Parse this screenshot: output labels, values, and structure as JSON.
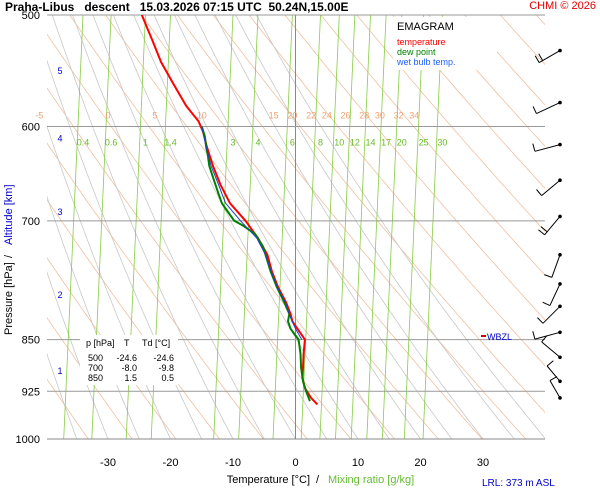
{
  "header": {
    "title": "Praha-Libus   descent   15.03.2026 07:15 UTC  50.24N,15.00E",
    "copyright": "CHMI © 2026"
  },
  "legend": {
    "title": "EMAGRAM",
    "items": [
      {
        "label": "temperature",
        "color": "#ff0000"
      },
      {
        "label": "dew point",
        "color": "#008000"
      },
      {
        "label": "wet bulb temp.",
        "color": "#2060ff"
      }
    ]
  },
  "axes": {
    "y_title_pressure": "Pressure [hPa]",
    "y_title_sep": "/",
    "y_title_altitude": "Altitude [km]",
    "x_title_temp": "Temperature [°C]",
    "x_title_sep": "/",
    "x_title_mixing": "Mixing ratio [g/kg]"
  },
  "station": {
    "marker_label": "WBZL",
    "marker_pressure": 845,
    "lrl": "LRL: 373 m ASL"
  },
  "data_table": {
    "headers": [
      "p [hPa]",
      "T",
      "Td [°C]"
    ],
    "rows": [
      [
        "500",
        "-24.6",
        "-24.6"
      ],
      [
        "700",
        "-8.0",
        "-9.8"
      ],
      [
        "850",
        "1.5",
        "0.5"
      ]
    ]
  },
  "colors": {
    "temperature": "#ff0000",
    "dewpoint": "#008000",
    "wetbulb": "#2040c0",
    "isobar": "#999999",
    "dry_adiabat": "#f0c0a0",
    "moist_adiabat": "#c8c8c8",
    "mixing_ratio": "#88cc44",
    "altitude": "#0000cc"
  },
  "chart_data": {
    "type": "line",
    "x_scale": "linear",
    "y_scale": "log",
    "xlim": [
      -40,
      40
    ],
    "ylim": [
      1000,
      500
    ],
    "pressure_ticks": [
      500,
      600,
      700,
      850,
      925,
      1000
    ],
    "temperature_ticks": [
      -30,
      -20,
      -10,
      0,
      10,
      20,
      30
    ],
    "altitude_ticks": [
      {
        "label": "5",
        "p": 548
      },
      {
        "label": "4",
        "p": 612
      },
      {
        "label": "3",
        "p": 690
      },
      {
        "label": "2",
        "p": 790
      },
      {
        "label": "1",
        "p": 895
      }
    ],
    "dry_adiabat_labels": [
      {
        "label": "-5",
        "p": 595,
        "t": -41
      },
      {
        "label": "0",
        "p": 595,
        "t": -30
      },
      {
        "label": "5",
        "p": 595,
        "t": -22.5
      },
      {
        "label": "10",
        "p": 595,
        "t": -15
      },
      {
        "label": "15",
        "p": 595,
        "t": -3.5
      },
      {
        "label": "20",
        "p": 595,
        "t": -0.5
      },
      {
        "label": "22",
        "p": 595,
        "t": 2.5
      },
      {
        "label": "24",
        "p": 595,
        "t": 5
      },
      {
        "label": "26",
        "p": 595,
        "t": 8
      },
      {
        "label": "28",
        "p": 595,
        "t": 11
      },
      {
        "label": "30",
        "p": 595,
        "t": 13.5
      },
      {
        "label": "32",
        "p": 595,
        "t": 16.5
      },
      {
        "label": "34",
        "p": 595,
        "t": 19
      }
    ],
    "mixing_ratio_labels": [
      {
        "label": "0.4",
        "t": -34
      },
      {
        "label": "0.6",
        "t": -29.5
      },
      {
        "label": "1",
        "t": -24
      },
      {
        "label": "1.4",
        "t": -20
      },
      {
        "label": "3",
        "t": -10
      },
      {
        "label": "4",
        "t": -6
      },
      {
        "label": "6",
        "t": -0.5
      },
      {
        "label": "8",
        "t": 4
      },
      {
        "label": "10",
        "t": 7
      },
      {
        "label": "12",
        "t": 9.5
      },
      {
        "label": "14",
        "t": 12
      },
      {
        "label": "17",
        "t": 14.5
      },
      {
        "label": "20",
        "t": 17
      },
      {
        "label": "25",
        "t": 20.5
      },
      {
        "label": "30",
        "t": 23.5
      }
    ],
    "series": [
      {
        "key": "temperature",
        "values": [
          {
            "p": 500,
            "t": -24.6
          },
          {
            "p": 520,
            "t": -23
          },
          {
            "p": 540,
            "t": -21.5
          },
          {
            "p": 560,
            "t": -19.5
          },
          {
            "p": 580,
            "t": -17.5
          },
          {
            "p": 595,
            "t": -15.5
          },
          {
            "p": 605,
            "t": -14.8
          },
          {
            "p": 620,
            "t": -14.2
          },
          {
            "p": 640,
            "t": -13.2
          },
          {
            "p": 660,
            "t": -12
          },
          {
            "p": 680,
            "t": -10.5
          },
          {
            "p": 700,
            "t": -8
          },
          {
            "p": 720,
            "t": -6
          },
          {
            "p": 740,
            "t": -4.5
          },
          {
            "p": 760,
            "t": -3.8
          },
          {
            "p": 780,
            "t": -2.8
          },
          {
            "p": 800,
            "t": -1.5
          },
          {
            "p": 815,
            "t": -0.8
          },
          {
            "p": 825,
            "t": -0.5
          },
          {
            "p": 835,
            "t": 0.3
          },
          {
            "p": 850,
            "t": 1.5
          },
          {
            "p": 870,
            "t": 1.3
          },
          {
            "p": 890,
            "t": 1.2
          },
          {
            "p": 905,
            "t": 1.1
          },
          {
            "p": 920,
            "t": 1.5
          },
          {
            "p": 935,
            "t": 2.5
          },
          {
            "p": 945,
            "t": 3.5
          }
        ]
      },
      {
        "key": "dewpoint",
        "values": [
          {
            "p": 600,
            "t": -15
          },
          {
            "p": 610,
            "t": -14.5
          },
          {
            "p": 620,
            "t": -14.3
          },
          {
            "p": 630,
            "t": -14
          },
          {
            "p": 640,
            "t": -13.8
          },
          {
            "p": 650,
            "t": -13.3
          },
          {
            "p": 660,
            "t": -12.8
          },
          {
            "p": 670,
            "t": -12.3
          },
          {
            "p": 680,
            "t": -11.8
          },
          {
            "p": 690,
            "t": -10.8
          },
          {
            "p": 700,
            "t": -9.8
          },
          {
            "p": 705,
            "t": -8.5
          },
          {
            "p": 715,
            "t": -6.5
          },
          {
            "p": 730,
            "t": -5.2
          },
          {
            "p": 745,
            "t": -4.6
          },
          {
            "p": 760,
            "t": -4
          },
          {
            "p": 780,
            "t": -3
          },
          {
            "p": 800,
            "t": -1.8
          },
          {
            "p": 815,
            "t": -1
          },
          {
            "p": 825,
            "t": -1.2
          },
          {
            "p": 835,
            "t": -0.8
          },
          {
            "p": 850,
            "t": 0.5
          },
          {
            "p": 870,
            "t": 0.8
          },
          {
            "p": 890,
            "t": 0.9
          },
          {
            "p": 910,
            "t": 1.2
          },
          {
            "p": 925,
            "t": 1.7
          },
          {
            "p": 940,
            "t": 2.3
          }
        ]
      },
      {
        "key": "wetbulb",
        "values": [
          {
            "p": 600,
            "t": -15
          },
          {
            "p": 620,
            "t": -14.3
          },
          {
            "p": 640,
            "t": -13.5
          },
          {
            "p": 660,
            "t": -12.3
          },
          {
            "p": 680,
            "t": -11.2
          },
          {
            "p": 700,
            "t": -8.8
          },
          {
            "p": 720,
            "t": -6.2
          },
          {
            "p": 740,
            "t": -4.8
          },
          {
            "p": 760,
            "t": -3.9
          },
          {
            "p": 780,
            "t": -2.9
          },
          {
            "p": 800,
            "t": -1.6
          },
          {
            "p": 820,
            "t": -0.8
          },
          {
            "p": 835,
            "t": 0
          },
          {
            "p": 850,
            "t": 1
          }
        ]
      }
    ],
    "wind": [
      {
        "p": 530,
        "dir": 240,
        "len": 24,
        "barb": [
          0.5,
          1
        ]
      },
      {
        "p": 577,
        "dir": 245,
        "len": 26,
        "barb": [
          0.5
        ]
      },
      {
        "p": 618,
        "dir": 255,
        "len": 26,
        "barb": [
          0.5
        ]
      },
      {
        "p": 655,
        "dir": 230,
        "len": 24,
        "barb": [
          0.5
        ]
      },
      {
        "p": 695,
        "dir": 220,
        "len": 24,
        "barb": [
          0.5,
          1
        ]
      },
      {
        "p": 740,
        "dir": 200,
        "len": 24,
        "barb": [
          0.5
        ]
      },
      {
        "p": 776,
        "dir": 205,
        "len": 24,
        "barb": [
          0.5
        ]
      },
      {
        "p": 805,
        "dir": 225,
        "len": 24,
        "barb": [
          0.5
        ]
      },
      {
        "p": 840,
        "dir": 255,
        "len": 26,
        "barb": [
          0.5
        ]
      },
      {
        "p": 875,
        "dir": 310,
        "len": 24,
        "barb": [
          0.5
        ]
      },
      {
        "p": 910,
        "dir": 320,
        "len": 20,
        "barb": [
          0.5
        ]
      },
      {
        "p": 935,
        "dir": 330,
        "len": 20,
        "barb": [
          0.5
        ]
      }
    ]
  }
}
